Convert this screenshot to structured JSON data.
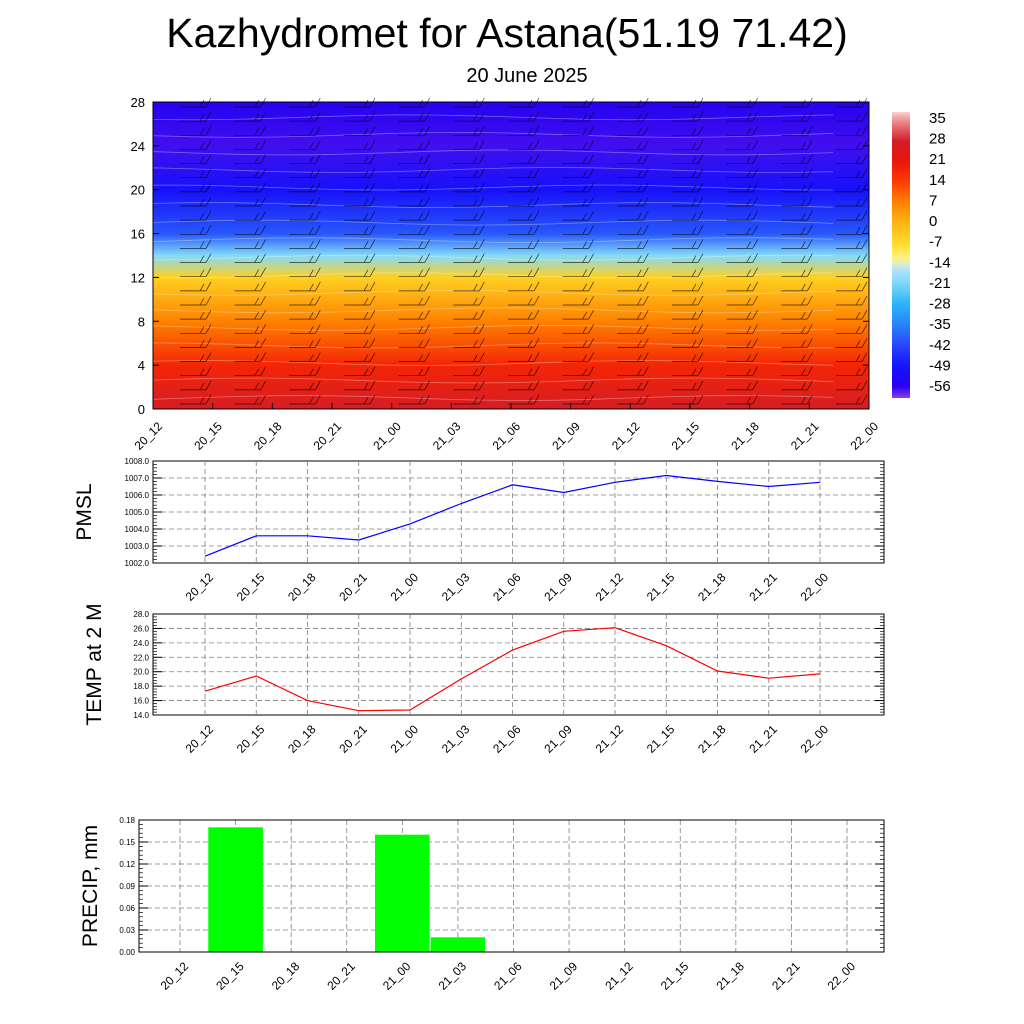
{
  "title": "Kazhydromet for Astana(51.19 71.42)",
  "subtitle": "20 June 2025",
  "colors": {
    "pmsl_line": "#0000ff",
    "temp_line": "#ff0000",
    "precip_bar": "#00ff00",
    "grid": "#808080"
  },
  "chart_data": [
    {
      "type": "heatmap",
      "variable": "temperature with wind barbs",
      "x_ticks": [
        "20_12",
        "20_15",
        "20_18",
        "20_21",
        "21_00",
        "21_03",
        "21_06",
        "21_09",
        "21_12",
        "21_15",
        "21_18",
        "21_21",
        "22_00"
      ],
      "y_ticks": [
        "0",
        "4",
        "8",
        "12",
        "16",
        "20",
        "24",
        "28"
      ],
      "ylim": [
        0,
        28
      ],
      "colorbar": {
        "labels": [
          "35",
          "28",
          "21",
          "14",
          "7",
          "0",
          "-7",
          "-14",
          "-21",
          "-28",
          "-35",
          "-42",
          "-49",
          "-56"
        ],
        "range": [
          -60,
          38
        ]
      },
      "approx_profile": [
        {
          "level": 0,
          "value": 27
        },
        {
          "level": 4,
          "value": 18
        },
        {
          "level": 8,
          "value": 7
        },
        {
          "level": 12,
          "value": -5
        },
        {
          "level": 14,
          "value": -20
        },
        {
          "level": 16,
          "value": -40
        },
        {
          "level": 20,
          "value": -50
        },
        {
          "level": 24,
          "value": -57
        },
        {
          "level": 28,
          "value": -55
        }
      ]
    },
    {
      "type": "line",
      "ylabel": "PMSL",
      "categories": [
        "20_12",
        "20_15",
        "20_18",
        "20_21",
        "21_00",
        "21_03",
        "21_06",
        "21_09",
        "21_12",
        "21_15",
        "21_18",
        "21_21",
        "22_00"
      ],
      "values": [
        1002.4,
        1003.6,
        1003.6,
        1003.35,
        1004.3,
        1005.5,
        1006.6,
        1006.15,
        1006.75,
        1007.15,
        1006.8,
        1006.5,
        1006.75
      ],
      "ylim": [
        1002.0,
        1008.0
      ],
      "y_ticks": [
        "1002.0",
        "1003.0",
        "1004.0",
        "1005.0",
        "1006.0",
        "1007.0",
        "1008.0"
      ],
      "grid": true
    },
    {
      "type": "line",
      "ylabel": "TEMP at 2 M",
      "categories": [
        "20_12",
        "20_15",
        "20_18",
        "20_21",
        "21_00",
        "21_03",
        "21_06",
        "21_09",
        "21_12",
        "21_15",
        "21_18",
        "21_21",
        "22_00"
      ],
      "values": [
        17.3,
        19.4,
        16.0,
        14.6,
        14.7,
        19.0,
        23.0,
        25.6,
        26.1,
        23.6,
        20.1,
        19.1,
        19.7
      ],
      "ylim": [
        14.0,
        28.0
      ],
      "y_ticks": [
        "14.0",
        "16.0",
        "18.0",
        "20.0",
        "22.0",
        "24.0",
        "26.0",
        "28.0"
      ],
      "grid": true
    },
    {
      "type": "bar",
      "ylabel": "PRECIP, mm",
      "categories": [
        "20_12",
        "20_15",
        "20_18",
        "20_21",
        "21_00",
        "21_03",
        "21_06",
        "21_09",
        "21_12",
        "21_15",
        "21_18",
        "21_21",
        "22_00"
      ],
      "values": [
        0,
        0.17,
        0,
        0,
        0.16,
        0.02,
        0,
        0,
        0,
        0,
        0,
        0,
        0
      ],
      "ylim": [
        0,
        0.18
      ],
      "y_ticks": [
        "0.00",
        "0.03",
        "0.06",
        "0.09",
        "0.12",
        "0.15",
        "0.18"
      ],
      "grid": true
    }
  ]
}
